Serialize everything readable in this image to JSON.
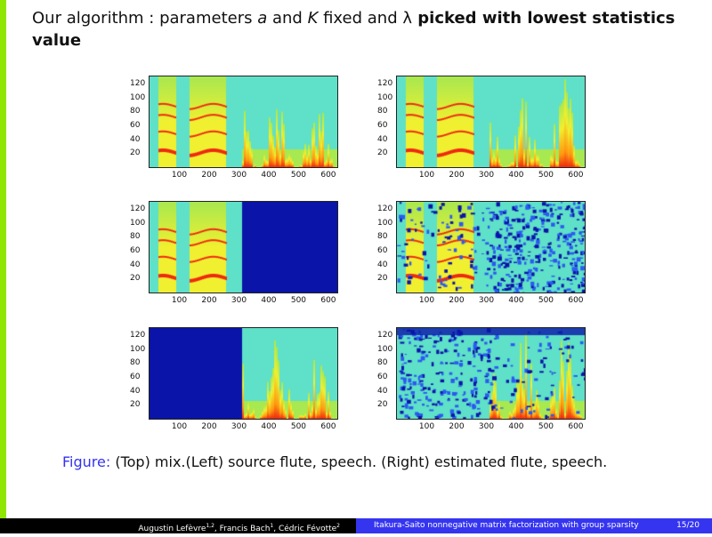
{
  "title": {
    "part1": "Our algorithm : parameters ",
    "a": "a",
    "part2": " and ",
    "K": "K",
    "part3": " fixed and ",
    "lambda": "λ",
    "bold": " picked with lowest statistics value"
  },
  "axes": {
    "yticks": [
      "120",
      "100",
      "80",
      "60",
      "40",
      "20"
    ],
    "xticks": [
      "100",
      "200",
      "300",
      "400",
      "500",
      "600"
    ],
    "xmax": 630,
    "ymax": 130
  },
  "plots": [
    {
      "id": "mix",
      "label": "mix"
    },
    {
      "id": "mix-est",
      "label": "mix"
    },
    {
      "id": "flute",
      "label": "source flute"
    },
    {
      "id": "flute-est",
      "label": "estimated flute"
    },
    {
      "id": "speech",
      "label": "source speech"
    },
    {
      "id": "speech-est",
      "label": "estimated speech"
    }
  ],
  "caption": {
    "label": "Figure:",
    "text": " (Top) mix.(Left) source flute, speech. (Right) estimated flute, speech."
  },
  "footer": {
    "authors": "Augustin Lefèvre",
    "a1": "1,2",
    "bach": ", Francis Bach",
    "a2": "1",
    "fevotte": ", Cédric Févotte",
    "a3": "2",
    "talk": "Itakura-Saito nonnegative matrix factorization with group sparsity",
    "page": "15/20"
  },
  "colors": {
    "accent": "#8fe600",
    "footer_right": "#3535f0",
    "caption_label": "#3333ee"
  }
}
